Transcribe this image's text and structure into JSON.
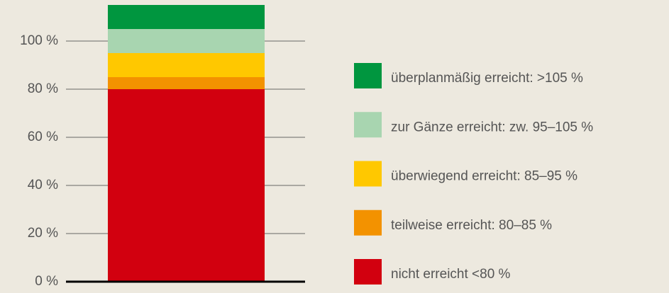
{
  "chart_data": {
    "type": "stacked_bar",
    "categories": [
      null
    ],
    "series": [
      {
        "name": "nicht erreicht <80 %",
        "color": "#d2000f",
        "values": [
          80
        ]
      },
      {
        "name": "teilweise erreicht: 80–85 %",
        "color": "#f39200",
        "values": [
          5
        ]
      },
      {
        "name": "überwiegend erreicht: 85–95 %",
        "color": "#ffc800",
        "values": [
          10
        ]
      },
      {
        "name": "zur Gänze erreicht: zw. 95–105 %",
        "color": "#a8d5b0",
        "values": [
          10
        ]
      },
      {
        "name": "überplanmäßig erreicht: >105 %",
        "color": "#00963f",
        "values": [
          10
        ]
      }
    ],
    "ylim": [
      0,
      115
    ],
    "yticks": [
      {
        "value": 0,
        "label": "0 %"
      },
      {
        "value": 20,
        "label": "20 %"
      },
      {
        "value": 40,
        "label": "40 %"
      },
      {
        "value": 60,
        "label": "60 %"
      },
      {
        "value": 80,
        "label": "80 %"
      },
      {
        "value": 100,
        "label": "100 %"
      }
    ],
    "grid": true,
    "legend": "right"
  }
}
